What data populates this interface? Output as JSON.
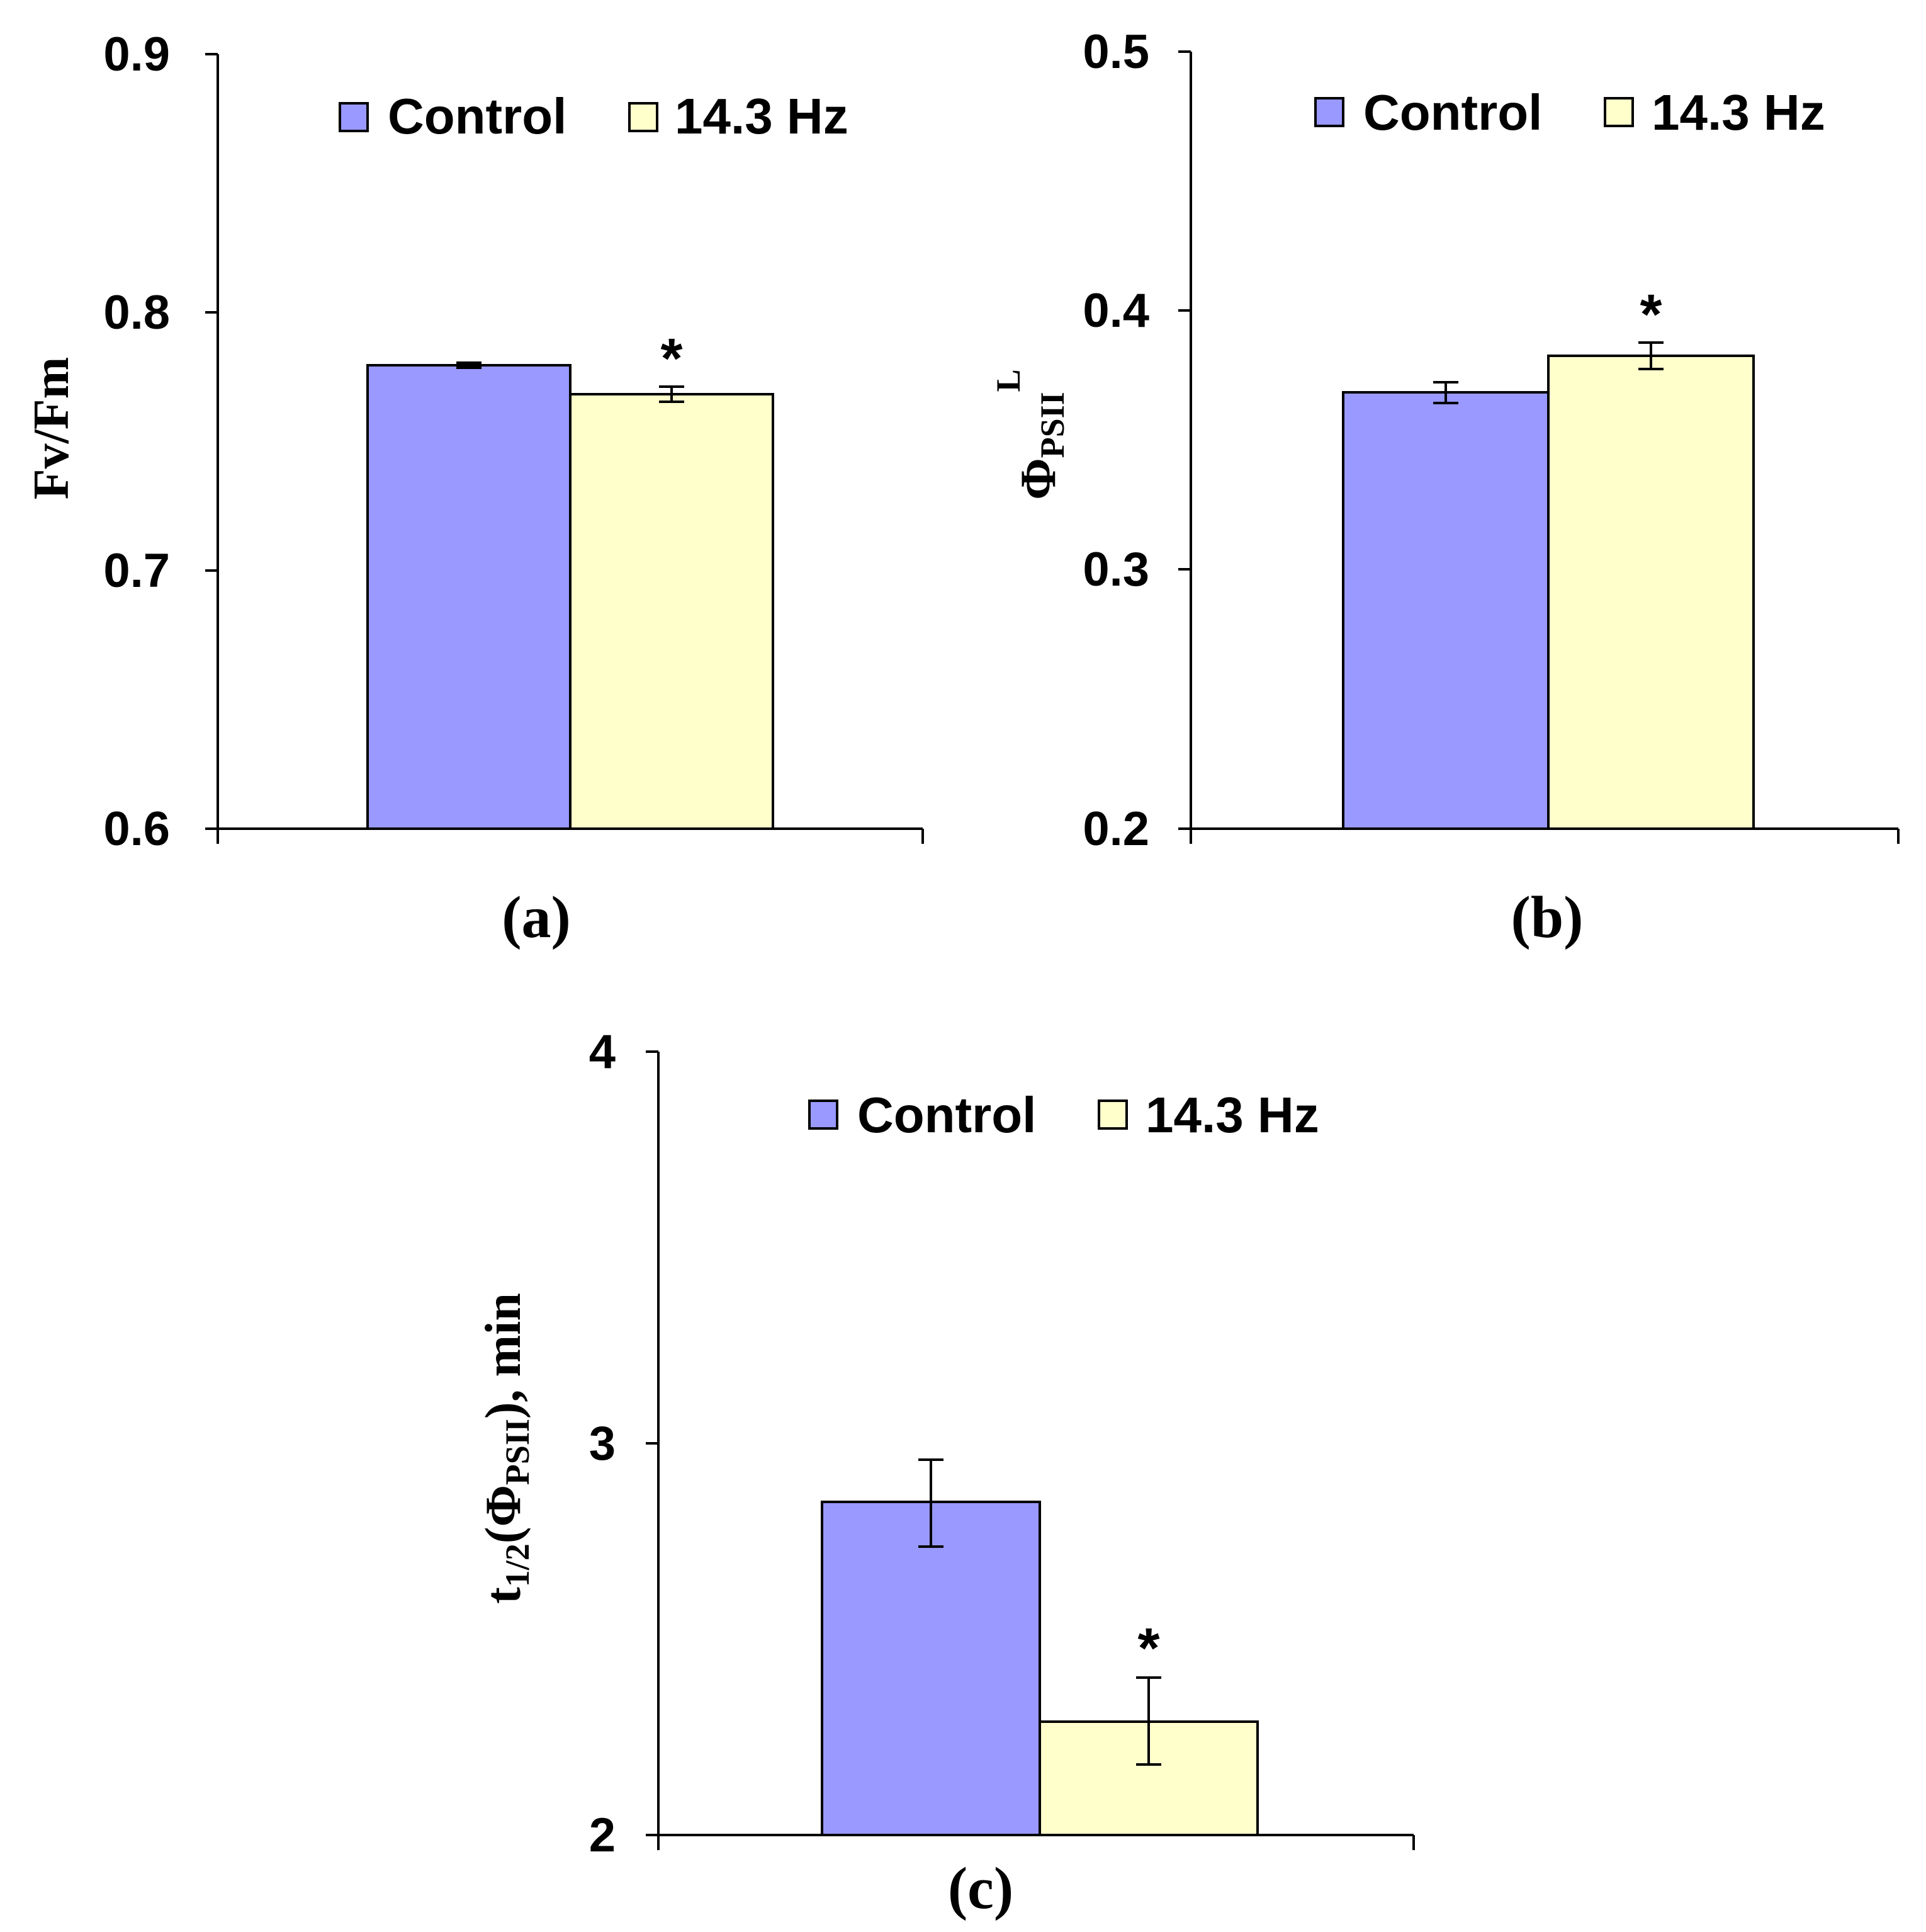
{
  "colors": {
    "control": "#9999FF",
    "treated": "#FFFFCC",
    "outline": "#000000"
  },
  "chart_data": [
    {
      "type": "bar",
      "panel_label": "(a)",
      "ylabel": "Fv/Fm",
      "ylim": [
        0.6,
        0.9
      ],
      "yticks": [
        "0.6",
        "0.7",
        "0.8",
        "0.9"
      ],
      "ytick_values": [
        0.6,
        0.7,
        0.8,
        0.9
      ],
      "legend": [
        "Control",
        "14.3 Hz"
      ],
      "legend_position": "top",
      "series": [
        {
          "name": "Control",
          "values": [
            0.779
          ],
          "errors": [
            0.001
          ],
          "significance": ""
        },
        {
          "name": "14.3 Hz",
          "values": [
            0.768
          ],
          "errors": [
            0.003
          ],
          "significance": "*"
        }
      ]
    },
    {
      "type": "bar",
      "panel_label": "(b)",
      "ylabel_main": "Φ",
      "ylabel_sub": "PSII",
      "ylabel_sup": "L",
      "ylim": [
        0.2,
        0.5
      ],
      "yticks": [
        "0.2",
        "0.3",
        "0.4",
        "0.5"
      ],
      "ytick_values": [
        0.2,
        0.3,
        0.4,
        0.5
      ],
      "legend": [
        "Control",
        "14.3 Hz"
      ],
      "legend_position": "top",
      "series": [
        {
          "name": "Control",
          "values": [
            0.369
          ],
          "errors": [
            0.004
          ],
          "significance": ""
        },
        {
          "name": "14.3 Hz",
          "values": [
            0.383
          ],
          "errors": [
            0.005
          ],
          "significance": "*"
        }
      ]
    },
    {
      "type": "bar",
      "panel_label": "(c)",
      "ylabel_pre": "t",
      "ylabel_sub1": "1/2",
      "ylabel_mid": "(Φ",
      "ylabel_sub2": "PSII",
      "ylabel_post": "), min",
      "ylim": [
        2,
        4
      ],
      "yticks": [
        "2",
        "3",
        "4"
      ],
      "ytick_values": [
        2,
        3,
        4
      ],
      "legend": [
        "Control",
        "14.3 Hz"
      ],
      "legend_position": "top",
      "series": [
        {
          "name": "Control",
          "values": [
            2.85
          ],
          "errors": [
            0.11
          ],
          "significance": ""
        },
        {
          "name": "14.3 Hz",
          "values": [
            2.29
          ],
          "errors": [
            0.11
          ],
          "significance": "*"
        }
      ]
    }
  ]
}
